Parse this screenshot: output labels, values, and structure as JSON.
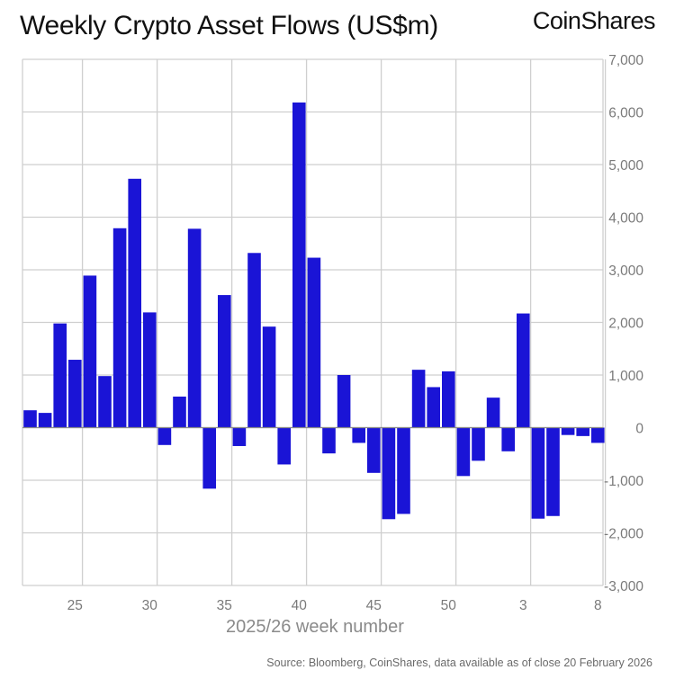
{
  "header": {
    "title": "Weekly Crypto Asset Flows (US$m)",
    "brand": "CoinShares"
  },
  "footer": {
    "source": "Source: Bloomberg, CoinShares, data available as of close 20 February 2026"
  },
  "colors": {
    "bar": "#1a14d6",
    "grid": "#cfcfcf",
    "tick_text": "#7a7a7a"
  },
  "chart_data": {
    "type": "bar",
    "title": "Weekly Crypto Asset Flows (US$m)",
    "xlabel": "2025/26 week number",
    "ylabel": "",
    "ylim": [
      -3000,
      7000
    ],
    "yticks": [
      -3000,
      -2000,
      -1000,
      0,
      1000,
      2000,
      3000,
      4000,
      5000,
      6000,
      7000
    ],
    "ytick_labels": [
      "-3,000",
      "-2,000",
      "-1,000",
      "0",
      "1,000",
      "2,000",
      "3,000",
      "4,000",
      "5,000",
      "6,000",
      "7,000"
    ],
    "y_axis_side": "right",
    "grid": true,
    "categories": [
      22,
      23,
      24,
      25,
      26,
      27,
      28,
      29,
      30,
      31,
      32,
      33,
      34,
      35,
      36,
      37,
      38,
      39,
      40,
      41,
      42,
      43,
      44,
      45,
      46,
      47,
      48,
      49,
      50,
      51,
      52,
      1,
      2,
      3,
      4,
      5,
      6,
      7,
      8
    ],
    "xtick_labels": [
      "25",
      "30",
      "35",
      "40",
      "45",
      "50",
      "3",
      "8"
    ],
    "xtick_categories": [
      25,
      30,
      35,
      40,
      45,
      50,
      3,
      8
    ],
    "values": [
      330,
      280,
      1980,
      1290,
      2890,
      980,
      3790,
      4730,
      2190,
      -330,
      590,
      3780,
      -1160,
      2520,
      -350,
      3320,
      1920,
      -700,
      6180,
      3230,
      -490,
      1000,
      -290,
      -860,
      -1740,
      -1640,
      1100,
      770,
      1070,
      -920,
      -630,
      570,
      -450,
      2170,
      -1730,
      -1680,
      -140,
      -160,
      -290
    ]
  }
}
